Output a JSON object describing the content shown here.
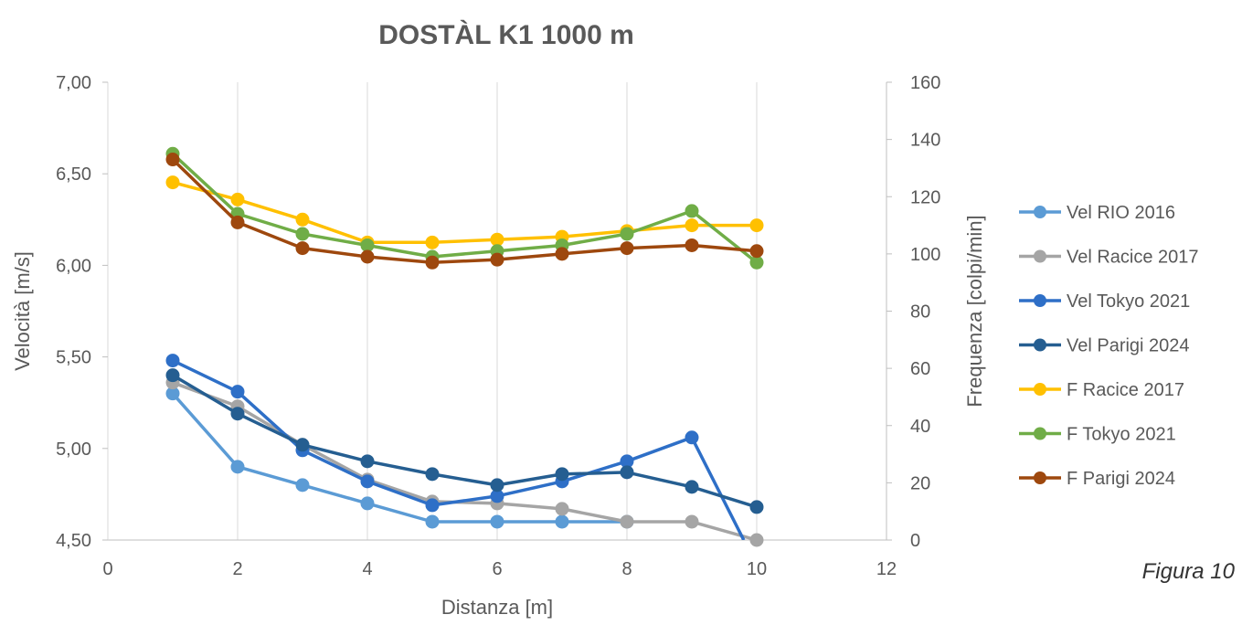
{
  "chart_data": {
    "type": "line",
    "title": "DOSTÀL K1 1000 m",
    "xlabel": "Distanza [m]",
    "ylabel_left": "Velocità [m/s]",
    "ylabel_right": "Frequenza [colpi/min]",
    "xlim": [
      0,
      12
    ],
    "xticks": [
      "0",
      "2",
      "4",
      "6",
      "8",
      "10",
      "12"
    ],
    "ylim_left": [
      4.5,
      7.0
    ],
    "yticks_left": [
      "4,50",
      "5,00",
      "5,50",
      "6,00",
      "6,50",
      "7,00"
    ],
    "ylim_right": [
      0,
      160
    ],
    "yticks_right": [
      "0",
      "20",
      "40",
      "60",
      "80",
      "100",
      "120",
      "140",
      "160"
    ],
    "grid": "vertical",
    "legend_position": "right",
    "series": [
      {
        "name": "Vel RIO 2016",
        "axis": "left",
        "color": "#5B9BD5",
        "x": [
          1,
          2,
          3,
          4,
          5,
          6,
          7,
          8
        ],
        "values": [
          5.3,
          4.9,
          4.8,
          4.7,
          4.6,
          4.6,
          4.6,
          4.6
        ]
      },
      {
        "name": "Vel Racice 2017",
        "axis": "left",
        "color": "#A5A5A5",
        "x": [
          1,
          2,
          3,
          4,
          5,
          6,
          7,
          8,
          9,
          10
        ],
        "values": [
          5.36,
          5.23,
          5.02,
          4.83,
          4.71,
          4.7,
          4.67,
          4.6,
          4.6,
          4.5
        ]
      },
      {
        "name": "Vel Tokyo 2021",
        "axis": "left",
        "color": "#2E6FC7",
        "x": [
          1,
          2,
          3,
          4,
          5,
          6,
          7,
          8,
          9,
          9.8
        ],
        "values": [
          5.48,
          5.31,
          4.99,
          4.82,
          4.69,
          4.74,
          4.82,
          4.93,
          5.06,
          4.5
        ],
        "markers": [
          true,
          true,
          true,
          true,
          true,
          true,
          true,
          true,
          true,
          false
        ]
      },
      {
        "name": "Vel Parigi 2024",
        "axis": "left",
        "color": "#255E91",
        "x": [
          1,
          2,
          3,
          4,
          5,
          6,
          7,
          8,
          9,
          10
        ],
        "values": [
          5.4,
          5.19,
          5.02,
          4.93,
          4.86,
          4.8,
          4.86,
          4.87,
          4.79,
          4.68
        ]
      },
      {
        "name": "F Racice 2017",
        "axis": "right",
        "color": "#FFC000",
        "x": [
          1,
          2,
          3,
          4,
          5,
          6,
          7,
          8,
          9,
          10
        ],
        "values": [
          125,
          119,
          112,
          104,
          104,
          105,
          106,
          108,
          110,
          110
        ]
      },
      {
        "name": "F Tokyo 2021",
        "axis": "right",
        "color": "#70AD47",
        "x": [
          1,
          2,
          3,
          4,
          5,
          6,
          7,
          8,
          9,
          10
        ],
        "values": [
          135,
          114,
          107,
          103,
          99,
          101,
          103,
          107,
          115,
          97
        ]
      },
      {
        "name": "F Parigi 2024",
        "axis": "right",
        "color": "#9E480E",
        "x": [
          1,
          2,
          3,
          4,
          5,
          6,
          7,
          8,
          9,
          10
        ],
        "values": [
          133,
          111,
          102,
          99,
          97,
          98,
          100,
          102,
          103,
          101
        ]
      }
    ]
  },
  "caption": "Figura 10"
}
